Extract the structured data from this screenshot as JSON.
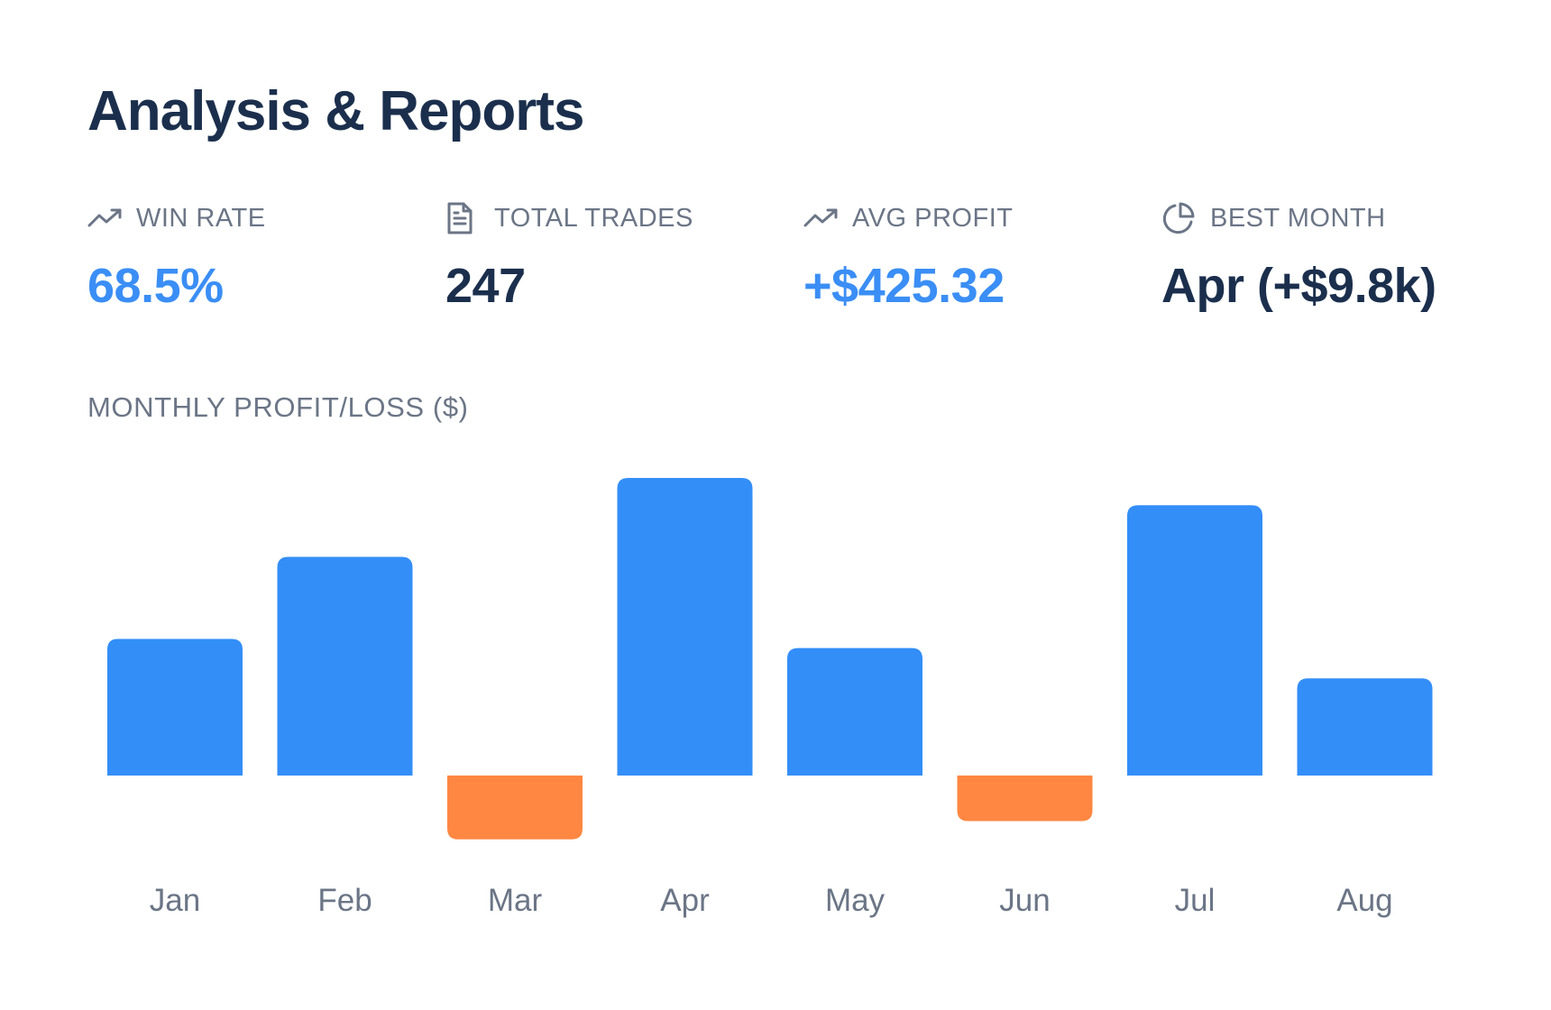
{
  "page": {
    "title": "Analysis & Reports"
  },
  "stats": [
    {
      "icon": "trend-up-icon",
      "label": "WIN RATE",
      "value": "68.5%",
      "accent": true
    },
    {
      "icon": "document-icon",
      "label": "TOTAL TRADES",
      "value": "247",
      "accent": false
    },
    {
      "icon": "trend-up-icon",
      "label": "AVG PROFIT",
      "value": "+$425.32",
      "accent": true
    },
    {
      "icon": "pie-chart-icon",
      "label": "BEST MONTH",
      "value": "Apr (+$9.8k)",
      "accent": false
    }
  ],
  "chart_title": "MONTHLY PROFIT/LOSS ($)",
  "colors": {
    "profit": "#338ef8",
    "loss": "#ff8742",
    "text_dark": "#1b2f4d",
    "text_muted": "#6b7586",
    "accent": "#3a8ef5"
  },
  "chart_data": {
    "type": "bar",
    "categories": [
      "Jan",
      "Feb",
      "Mar",
      "Apr",
      "May",
      "Jun",
      "Jul",
      "Aug"
    ],
    "values": [
      4500,
      7200,
      -2100,
      9800,
      4200,
      -1500,
      8900,
      3200
    ],
    "title": "",
    "xlabel": "",
    "ylabel": "",
    "ylim": [
      -2500,
      10000
    ],
    "grid": false,
    "legend": "none"
  }
}
